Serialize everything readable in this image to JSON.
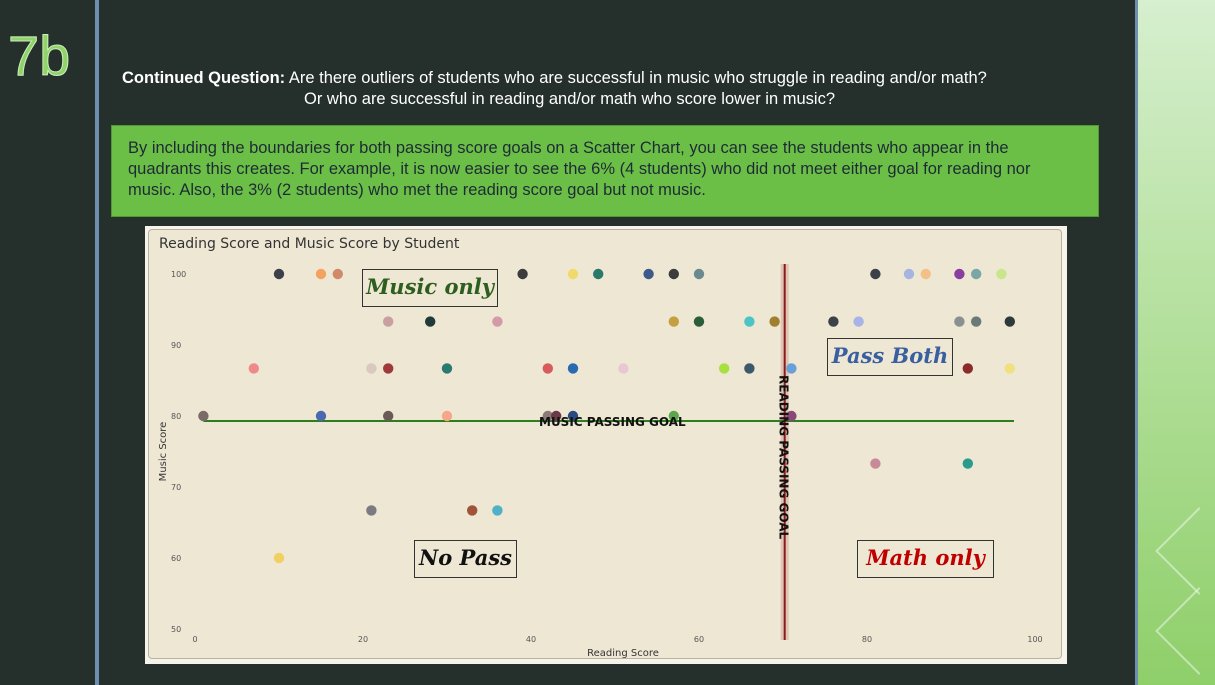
{
  "slide": {
    "number": "7b"
  },
  "question": {
    "lead": "Continued Question:",
    "line1": "Are there outliers of students who are successful in music who struggle in reading and/or math?",
    "line2": "Or who are successful in reading and/or math who score lower in music?"
  },
  "callout": {
    "text": "By including the boundaries for both passing score goals on a Scatter Chart, you can see the students who appear in the quadrants this creates. For example, it is now easier to see the 6% (4 students) who did not meet either goal for reading nor music. Also, the 3% (2 students) who met the reading score goal but not music."
  },
  "quadrants": {
    "music_only": {
      "label": "Music only",
      "color": "#2e5e1e"
    },
    "pass_both": {
      "label": "Pass Both",
      "color": "#3a5fa0"
    },
    "no_pass": {
      "label": "No Pass",
      "color": "#111111"
    },
    "math_only": {
      "label": "Math only",
      "color": "#c00000"
    }
  },
  "chart_data": {
    "type": "scatter",
    "title": "Reading Score and Music Score by Student",
    "xlabel": "Reading Score",
    "ylabel": "Music Score",
    "xlim": [
      0,
      100
    ],
    "ylim": [
      50,
      100
    ],
    "xticks": [
      "0",
      "20",
      "40",
      "60",
      "80",
      "100"
    ],
    "yticks": [
      "50",
      "60",
      "70",
      "80",
      "90",
      "100"
    ],
    "reference_lines": [
      {
        "label": "MUSIC PASSING GOAL",
        "axis": "y",
        "value": 79.3,
        "color": "#2e7d1e"
      },
      {
        "label": "READING PASSING GOAL",
        "axis": "x",
        "value": 70.2,
        "color": "#8b1a1a"
      }
    ],
    "points": [
      {
        "x": 10,
        "y": 100,
        "color": "#3c4048"
      },
      {
        "x": 15,
        "y": 100,
        "color": "#f4a261"
      },
      {
        "x": 17,
        "y": 100,
        "color": "#d08a6a"
      },
      {
        "x": 39,
        "y": 100,
        "color": "#3c3c3c"
      },
      {
        "x": 45,
        "y": 100,
        "color": "#f2d96b"
      },
      {
        "x": 48,
        "y": 100,
        "color": "#2a7a6a"
      },
      {
        "x": 54,
        "y": 100,
        "color": "#3d5a8a"
      },
      {
        "x": 57,
        "y": 100,
        "color": "#3c3c3c"
      },
      {
        "x": 60,
        "y": 100,
        "color": "#6b8a90"
      },
      {
        "x": 81,
        "y": 100,
        "color": "#3c4048"
      },
      {
        "x": 85,
        "y": 100,
        "color": "#a8b4e0"
      },
      {
        "x": 87,
        "y": 100,
        "color": "#f4c08a"
      },
      {
        "x": 91,
        "y": 100,
        "color": "#8a3fa0"
      },
      {
        "x": 93,
        "y": 100,
        "color": "#7aa6a6"
      },
      {
        "x": 96,
        "y": 100,
        "color": "#c8e68a"
      },
      {
        "x": 23,
        "y": 93.3,
        "color": "#c8a0a0"
      },
      {
        "x": 28,
        "y": 93.3,
        "color": "#1f3a38"
      },
      {
        "x": 36,
        "y": 93.3,
        "color": "#d49aa6"
      },
      {
        "x": 57,
        "y": 93.3,
        "color": "#c4a040"
      },
      {
        "x": 60,
        "y": 93.3,
        "color": "#2a5e3a"
      },
      {
        "x": 66,
        "y": 93.3,
        "color": "#4cc4c4"
      },
      {
        "x": 69,
        "y": 93.3,
        "color": "#a08030"
      },
      {
        "x": 76,
        "y": 93.3,
        "color": "#3c4048"
      },
      {
        "x": 79,
        "y": 93.3,
        "color": "#a8b4e8"
      },
      {
        "x": 91,
        "y": 93.3,
        "color": "#8a9090"
      },
      {
        "x": 93,
        "y": 93.3,
        "color": "#6a7a78"
      },
      {
        "x": 97,
        "y": 93.3,
        "color": "#2e3a3a"
      },
      {
        "x": 7,
        "y": 86.7,
        "color": "#f08a8a"
      },
      {
        "x": 21,
        "y": 86.7,
        "color": "#d8c8c0"
      },
      {
        "x": 23,
        "y": 86.7,
        "color": "#a03a3a"
      },
      {
        "x": 30,
        "y": 86.7,
        "color": "#2a7a72"
      },
      {
        "x": 42,
        "y": 86.7,
        "color": "#d85a5a"
      },
      {
        "x": 45,
        "y": 86.7,
        "color": "#2a6ab0"
      },
      {
        "x": 51,
        "y": 86.7,
        "color": "#e8c8d0"
      },
      {
        "x": 63,
        "y": 86.7,
        "color": "#a8e040"
      },
      {
        "x": 66,
        "y": 86.7,
        "color": "#3a5a6a"
      },
      {
        "x": 71,
        "y": 86.7,
        "color": "#6aa0d8"
      },
      {
        "x": 92,
        "y": 86.7,
        "color": "#8a2a2a"
      },
      {
        "x": 97,
        "y": 86.7,
        "color": "#f0e080"
      },
      {
        "x": 1,
        "y": 80,
        "color": "#7a6a68"
      },
      {
        "x": 15,
        "y": 80,
        "color": "#4a6ab0"
      },
      {
        "x": 23,
        "y": 80,
        "color": "#6a5a58"
      },
      {
        "x": 30,
        "y": 80,
        "color": "#f4a888"
      },
      {
        "x": 42,
        "y": 80,
        "color": "#8a7a78"
      },
      {
        "x": 43,
        "y": 80,
        "color": "#6a3a48"
      },
      {
        "x": 45,
        "y": 80,
        "color": "#2a4a80"
      },
      {
        "x": 57,
        "y": 80,
        "color": "#5aa84a"
      },
      {
        "x": 71,
        "y": 80,
        "color": "#8a4a78"
      },
      {
        "x": 81,
        "y": 73.3,
        "color": "#c88a98"
      },
      {
        "x": 92,
        "y": 73.3,
        "color": "#2a9a8a"
      },
      {
        "x": 21,
        "y": 66.7,
        "color": "#7a7a80"
      },
      {
        "x": 33,
        "y": 66.7,
        "color": "#a0523a"
      },
      {
        "x": 36,
        "y": 66.7,
        "color": "#50b0c8"
      },
      {
        "x": 10,
        "y": 60,
        "color": "#f0d060"
      }
    ]
  }
}
